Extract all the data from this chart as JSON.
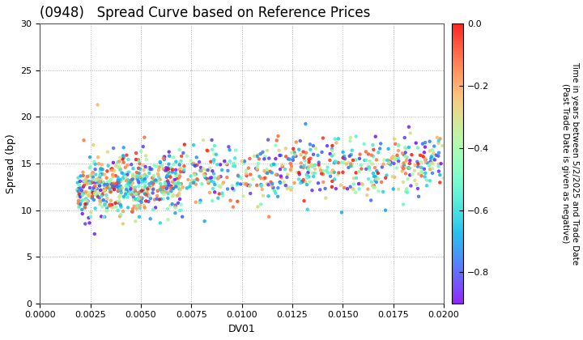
{
  "title": "(0948)   Spread Curve based on Reference Prices",
  "xlabel": "DV01",
  "ylabel": "Spread (bp)",
  "xlim": [
    0.0,
    0.02
  ],
  "ylim": [
    0,
    30
  ],
  "xticks": [
    0.0,
    0.0025,
    0.005,
    0.0075,
    0.01,
    0.0125,
    0.015,
    0.0175,
    0.02
  ],
  "yticks": [
    0,
    5,
    10,
    15,
    20,
    25,
    30
  ],
  "colorbar_label": "Time in years between 5/2/2025 and Trade Date\n(Past Trade Date is given as negative)",
  "colorbar_ticks": [
    0.0,
    -0.2,
    -0.4,
    -0.6,
    -0.8
  ],
  "cmap": "rainbow",
  "vmin": -0.9,
  "vmax": 0.0,
  "seed": 42,
  "n_points": 800,
  "title_fontsize": 12,
  "axis_label_fontsize": 9,
  "tick_fontsize": 8,
  "marker_size": 10
}
